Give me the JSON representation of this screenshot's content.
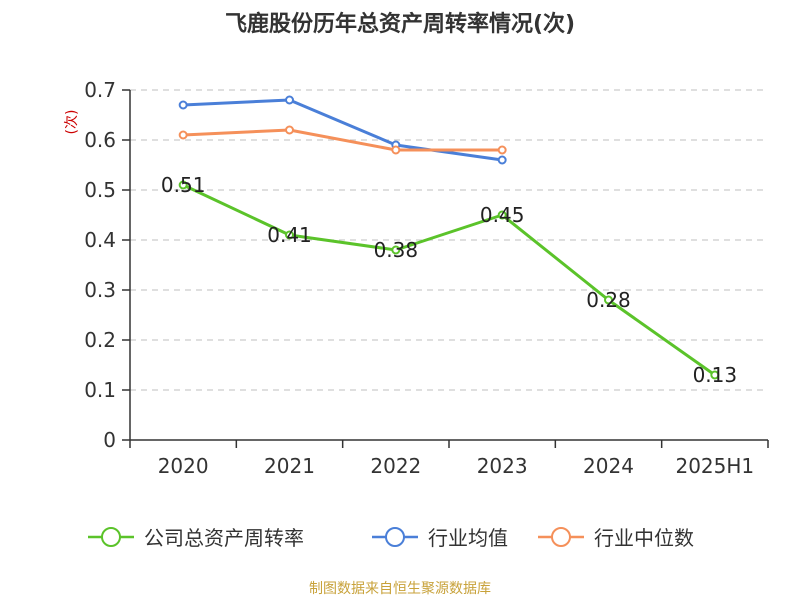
{
  "title": "飞鹿股份历年总资产周转率情况(次)",
  "source": "制图数据来自恒生聚源数据库",
  "chart_data": {
    "type": "line",
    "title": "飞鹿股份历年总资产周转率情况(次)",
    "ylabel": "(次)",
    "xlabel": "",
    "categories": [
      "2020",
      "2021",
      "2022",
      "2023",
      "2024",
      "2025H1"
    ],
    "ylim": [
      0,
      0.7
    ],
    "yticks": [
      "0",
      "0.1",
      "0.2",
      "0.3",
      "0.4",
      "0.5",
      "0.6",
      "0.7"
    ],
    "grid": true,
    "legend_position": "bottom",
    "series": [
      {
        "name": "公司总资产周转率",
        "color": "#5bc32a",
        "values": [
          0.51,
          0.41,
          0.38,
          0.45,
          0.28,
          0.13
        ],
        "labels": [
          "0.51",
          "0.41",
          "0.38",
          "0.45",
          "0.28",
          "0.13"
        ]
      },
      {
        "name": "行业均值",
        "color": "#4a7fd8",
        "values": [
          0.67,
          0.68,
          0.59,
          0.56,
          null,
          null
        ]
      },
      {
        "name": "行业中位数",
        "color": "#f5905a",
        "values": [
          0.61,
          0.62,
          0.58,
          0.58,
          null,
          null
        ]
      }
    ]
  }
}
